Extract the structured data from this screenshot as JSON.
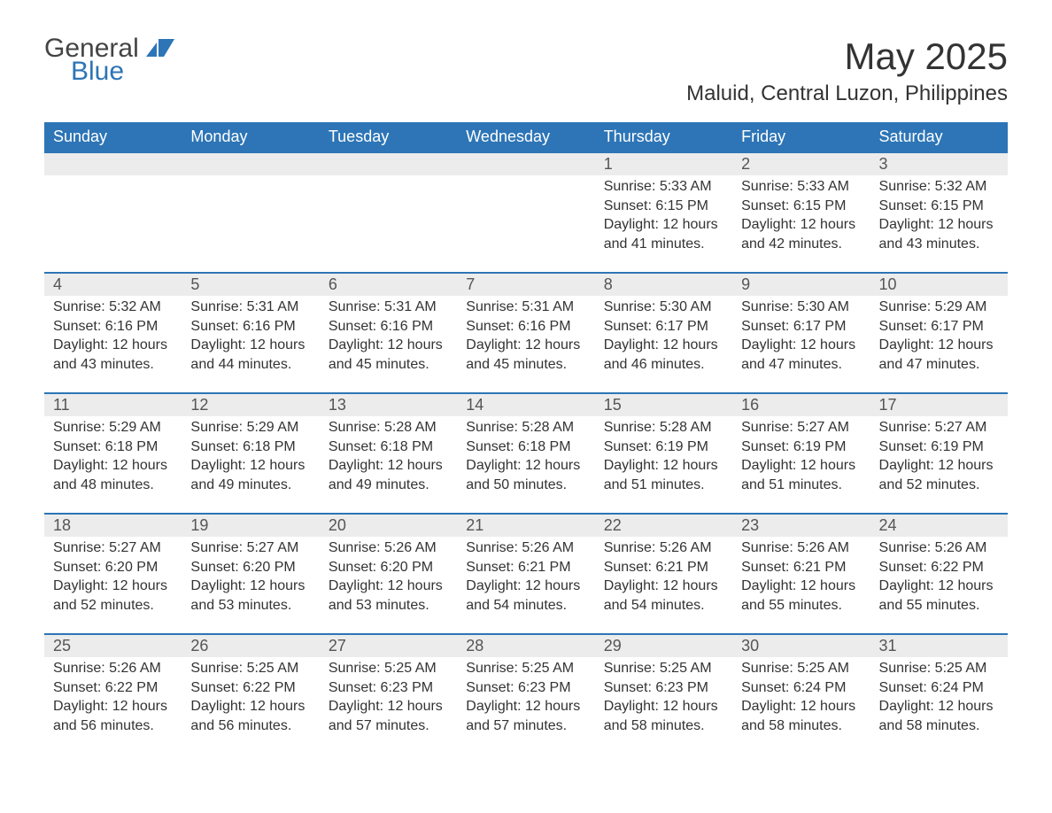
{
  "brand": {
    "word1": "General",
    "word2": "Blue",
    "accent": "#2d75b6"
  },
  "title": "May 2025",
  "location": "Maluid, Central Luzon, Philippines",
  "weekday_headers": [
    "Sunday",
    "Monday",
    "Tuesday",
    "Wednesday",
    "Thursday",
    "Friday",
    "Saturday"
  ],
  "colors": {
    "header_bg": "#2d75b6",
    "header_text": "#ffffff",
    "daynum_bg": "#ececec",
    "border": "#2d75b6",
    "body_text": "#333333"
  },
  "weeks": [
    [
      null,
      null,
      null,
      null,
      {
        "day": "1",
        "sunrise": "Sunrise: 5:33 AM",
        "sunset": "Sunset: 6:15 PM",
        "daylight": "Daylight: 12 hours and 41 minutes."
      },
      {
        "day": "2",
        "sunrise": "Sunrise: 5:33 AM",
        "sunset": "Sunset: 6:15 PM",
        "daylight": "Daylight: 12 hours and 42 minutes."
      },
      {
        "day": "3",
        "sunrise": "Sunrise: 5:32 AM",
        "sunset": "Sunset: 6:15 PM",
        "daylight": "Daylight: 12 hours and 43 minutes."
      }
    ],
    [
      {
        "day": "4",
        "sunrise": "Sunrise: 5:32 AM",
        "sunset": "Sunset: 6:16 PM",
        "daylight": "Daylight: 12 hours and 43 minutes."
      },
      {
        "day": "5",
        "sunrise": "Sunrise: 5:31 AM",
        "sunset": "Sunset: 6:16 PM",
        "daylight": "Daylight: 12 hours and 44 minutes."
      },
      {
        "day": "6",
        "sunrise": "Sunrise: 5:31 AM",
        "sunset": "Sunset: 6:16 PM",
        "daylight": "Daylight: 12 hours and 45 minutes."
      },
      {
        "day": "7",
        "sunrise": "Sunrise: 5:31 AM",
        "sunset": "Sunset: 6:16 PM",
        "daylight": "Daylight: 12 hours and 45 minutes."
      },
      {
        "day": "8",
        "sunrise": "Sunrise: 5:30 AM",
        "sunset": "Sunset: 6:17 PM",
        "daylight": "Daylight: 12 hours and 46 minutes."
      },
      {
        "day": "9",
        "sunrise": "Sunrise: 5:30 AM",
        "sunset": "Sunset: 6:17 PM",
        "daylight": "Daylight: 12 hours and 47 minutes."
      },
      {
        "day": "10",
        "sunrise": "Sunrise: 5:29 AM",
        "sunset": "Sunset: 6:17 PM",
        "daylight": "Daylight: 12 hours and 47 minutes."
      }
    ],
    [
      {
        "day": "11",
        "sunrise": "Sunrise: 5:29 AM",
        "sunset": "Sunset: 6:18 PM",
        "daylight": "Daylight: 12 hours and 48 minutes."
      },
      {
        "day": "12",
        "sunrise": "Sunrise: 5:29 AM",
        "sunset": "Sunset: 6:18 PM",
        "daylight": "Daylight: 12 hours and 49 minutes."
      },
      {
        "day": "13",
        "sunrise": "Sunrise: 5:28 AM",
        "sunset": "Sunset: 6:18 PM",
        "daylight": "Daylight: 12 hours and 49 minutes."
      },
      {
        "day": "14",
        "sunrise": "Sunrise: 5:28 AM",
        "sunset": "Sunset: 6:18 PM",
        "daylight": "Daylight: 12 hours and 50 minutes."
      },
      {
        "day": "15",
        "sunrise": "Sunrise: 5:28 AM",
        "sunset": "Sunset: 6:19 PM",
        "daylight": "Daylight: 12 hours and 51 minutes."
      },
      {
        "day": "16",
        "sunrise": "Sunrise: 5:27 AM",
        "sunset": "Sunset: 6:19 PM",
        "daylight": "Daylight: 12 hours and 51 minutes."
      },
      {
        "day": "17",
        "sunrise": "Sunrise: 5:27 AM",
        "sunset": "Sunset: 6:19 PM",
        "daylight": "Daylight: 12 hours and 52 minutes."
      }
    ],
    [
      {
        "day": "18",
        "sunrise": "Sunrise: 5:27 AM",
        "sunset": "Sunset: 6:20 PM",
        "daylight": "Daylight: 12 hours and 52 minutes."
      },
      {
        "day": "19",
        "sunrise": "Sunrise: 5:27 AM",
        "sunset": "Sunset: 6:20 PM",
        "daylight": "Daylight: 12 hours and 53 minutes."
      },
      {
        "day": "20",
        "sunrise": "Sunrise: 5:26 AM",
        "sunset": "Sunset: 6:20 PM",
        "daylight": "Daylight: 12 hours and 53 minutes."
      },
      {
        "day": "21",
        "sunrise": "Sunrise: 5:26 AM",
        "sunset": "Sunset: 6:21 PM",
        "daylight": "Daylight: 12 hours and 54 minutes."
      },
      {
        "day": "22",
        "sunrise": "Sunrise: 5:26 AM",
        "sunset": "Sunset: 6:21 PM",
        "daylight": "Daylight: 12 hours and 54 minutes."
      },
      {
        "day": "23",
        "sunrise": "Sunrise: 5:26 AM",
        "sunset": "Sunset: 6:21 PM",
        "daylight": "Daylight: 12 hours and 55 minutes."
      },
      {
        "day": "24",
        "sunrise": "Sunrise: 5:26 AM",
        "sunset": "Sunset: 6:22 PM",
        "daylight": "Daylight: 12 hours and 55 minutes."
      }
    ],
    [
      {
        "day": "25",
        "sunrise": "Sunrise: 5:26 AM",
        "sunset": "Sunset: 6:22 PM",
        "daylight": "Daylight: 12 hours and 56 minutes."
      },
      {
        "day": "26",
        "sunrise": "Sunrise: 5:25 AM",
        "sunset": "Sunset: 6:22 PM",
        "daylight": "Daylight: 12 hours and 56 minutes."
      },
      {
        "day": "27",
        "sunrise": "Sunrise: 5:25 AM",
        "sunset": "Sunset: 6:23 PM",
        "daylight": "Daylight: 12 hours and 57 minutes."
      },
      {
        "day": "28",
        "sunrise": "Sunrise: 5:25 AM",
        "sunset": "Sunset: 6:23 PM",
        "daylight": "Daylight: 12 hours and 57 minutes."
      },
      {
        "day": "29",
        "sunrise": "Sunrise: 5:25 AM",
        "sunset": "Sunset: 6:23 PM",
        "daylight": "Daylight: 12 hours and 58 minutes."
      },
      {
        "day": "30",
        "sunrise": "Sunrise: 5:25 AM",
        "sunset": "Sunset: 6:24 PM",
        "daylight": "Daylight: 12 hours and 58 minutes."
      },
      {
        "day": "31",
        "sunrise": "Sunrise: 5:25 AM",
        "sunset": "Sunset: 6:24 PM",
        "daylight": "Daylight: 12 hours and 58 minutes."
      }
    ]
  ]
}
